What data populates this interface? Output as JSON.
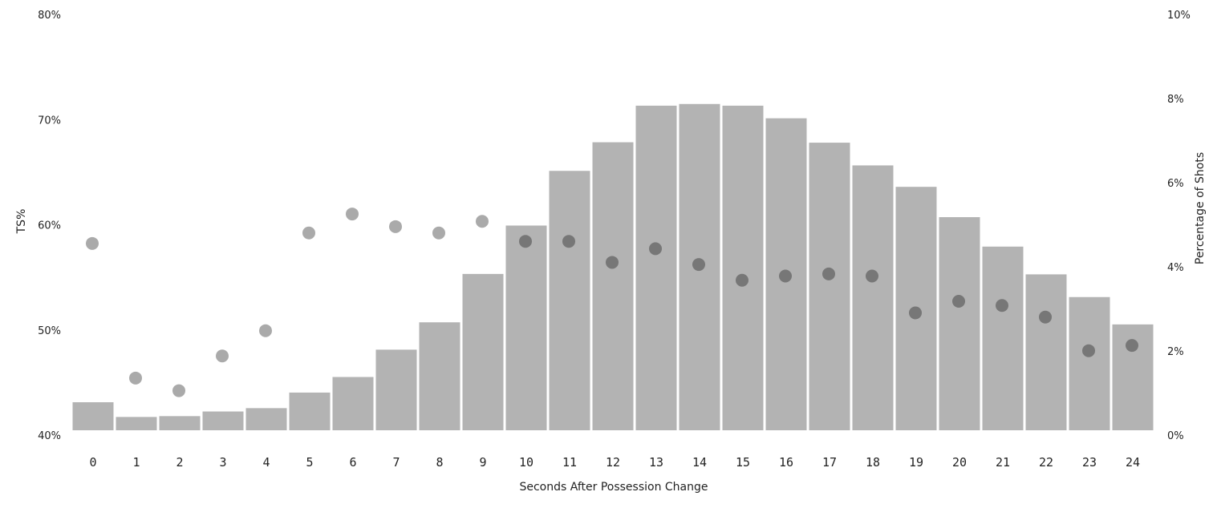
{
  "chart_data": {
    "type": "bar",
    "title": "",
    "xlabel": "Seconds After Possession Change",
    "ylabel_left": "TS%",
    "ylabel_right": "Percentage of Shots",
    "categories": [
      "0",
      "1",
      "2",
      "3",
      "4",
      "5",
      "6",
      "7",
      "8",
      "9",
      "10",
      "11",
      "12",
      "13",
      "14",
      "15",
      "16",
      "17",
      "18",
      "19",
      "20",
      "21",
      "22",
      "23",
      "24"
    ],
    "left_axis": {
      "ylim": [
        40,
        80
      ],
      "ticks": [
        "40%",
        "50%",
        "60%",
        "70%",
        "80%"
      ],
      "tick_values": [
        40,
        50,
        60,
        70,
        80
      ]
    },
    "right_axis": {
      "ylim": [
        0,
        10
      ],
      "ticks": [
        "0%",
        "2%",
        "4%",
        "6%",
        "8%",
        "10%"
      ],
      "tick_values": [
        0,
        2,
        4,
        6,
        8,
        10
      ]
    },
    "series": [
      {
        "type": "bar",
        "axis": "right",
        "values": [
          0.8,
          0.45,
          0.47,
          0.58,
          0.66,
          1.03,
          1.4,
          2.05,
          2.7,
          3.85,
          5.0,
          6.3,
          6.98,
          7.85,
          7.89,
          7.85,
          7.55,
          6.97,
          6.43,
          5.92,
          5.2,
          4.5,
          3.84,
          3.3,
          2.65
        ],
        "color": "#b3b3b3"
      },
      {
        "type": "scatter",
        "axis": "left",
        "values": [
          58.3,
          45.5,
          44.3,
          47.6,
          50.0,
          59.3,
          61.1,
          59.9,
          59.3,
          60.4,
          58.5,
          58.5,
          56.5,
          57.8,
          56.3,
          54.8,
          55.2,
          55.4,
          55.2,
          51.7,
          52.8,
          52.4,
          51.3,
          48.1,
          48.6
        ],
        "point_colors": [
          "#aaaaaa",
          "#aaaaaa",
          "#aaaaaa",
          "#aaaaaa",
          "#aaaaaa",
          "#aaaaaa",
          "#aaaaaa",
          "#aaaaaa",
          "#aaaaaa",
          "#aaaaaa",
          "#777777",
          "#777777",
          "#777777",
          "#777777",
          "#777777",
          "#777777",
          "#777777",
          "#777777",
          "#777777",
          "#777777",
          "#777777",
          "#777777",
          "#777777",
          "#777777",
          "#777777"
        ]
      }
    ],
    "grid": false,
    "legend": "none"
  }
}
